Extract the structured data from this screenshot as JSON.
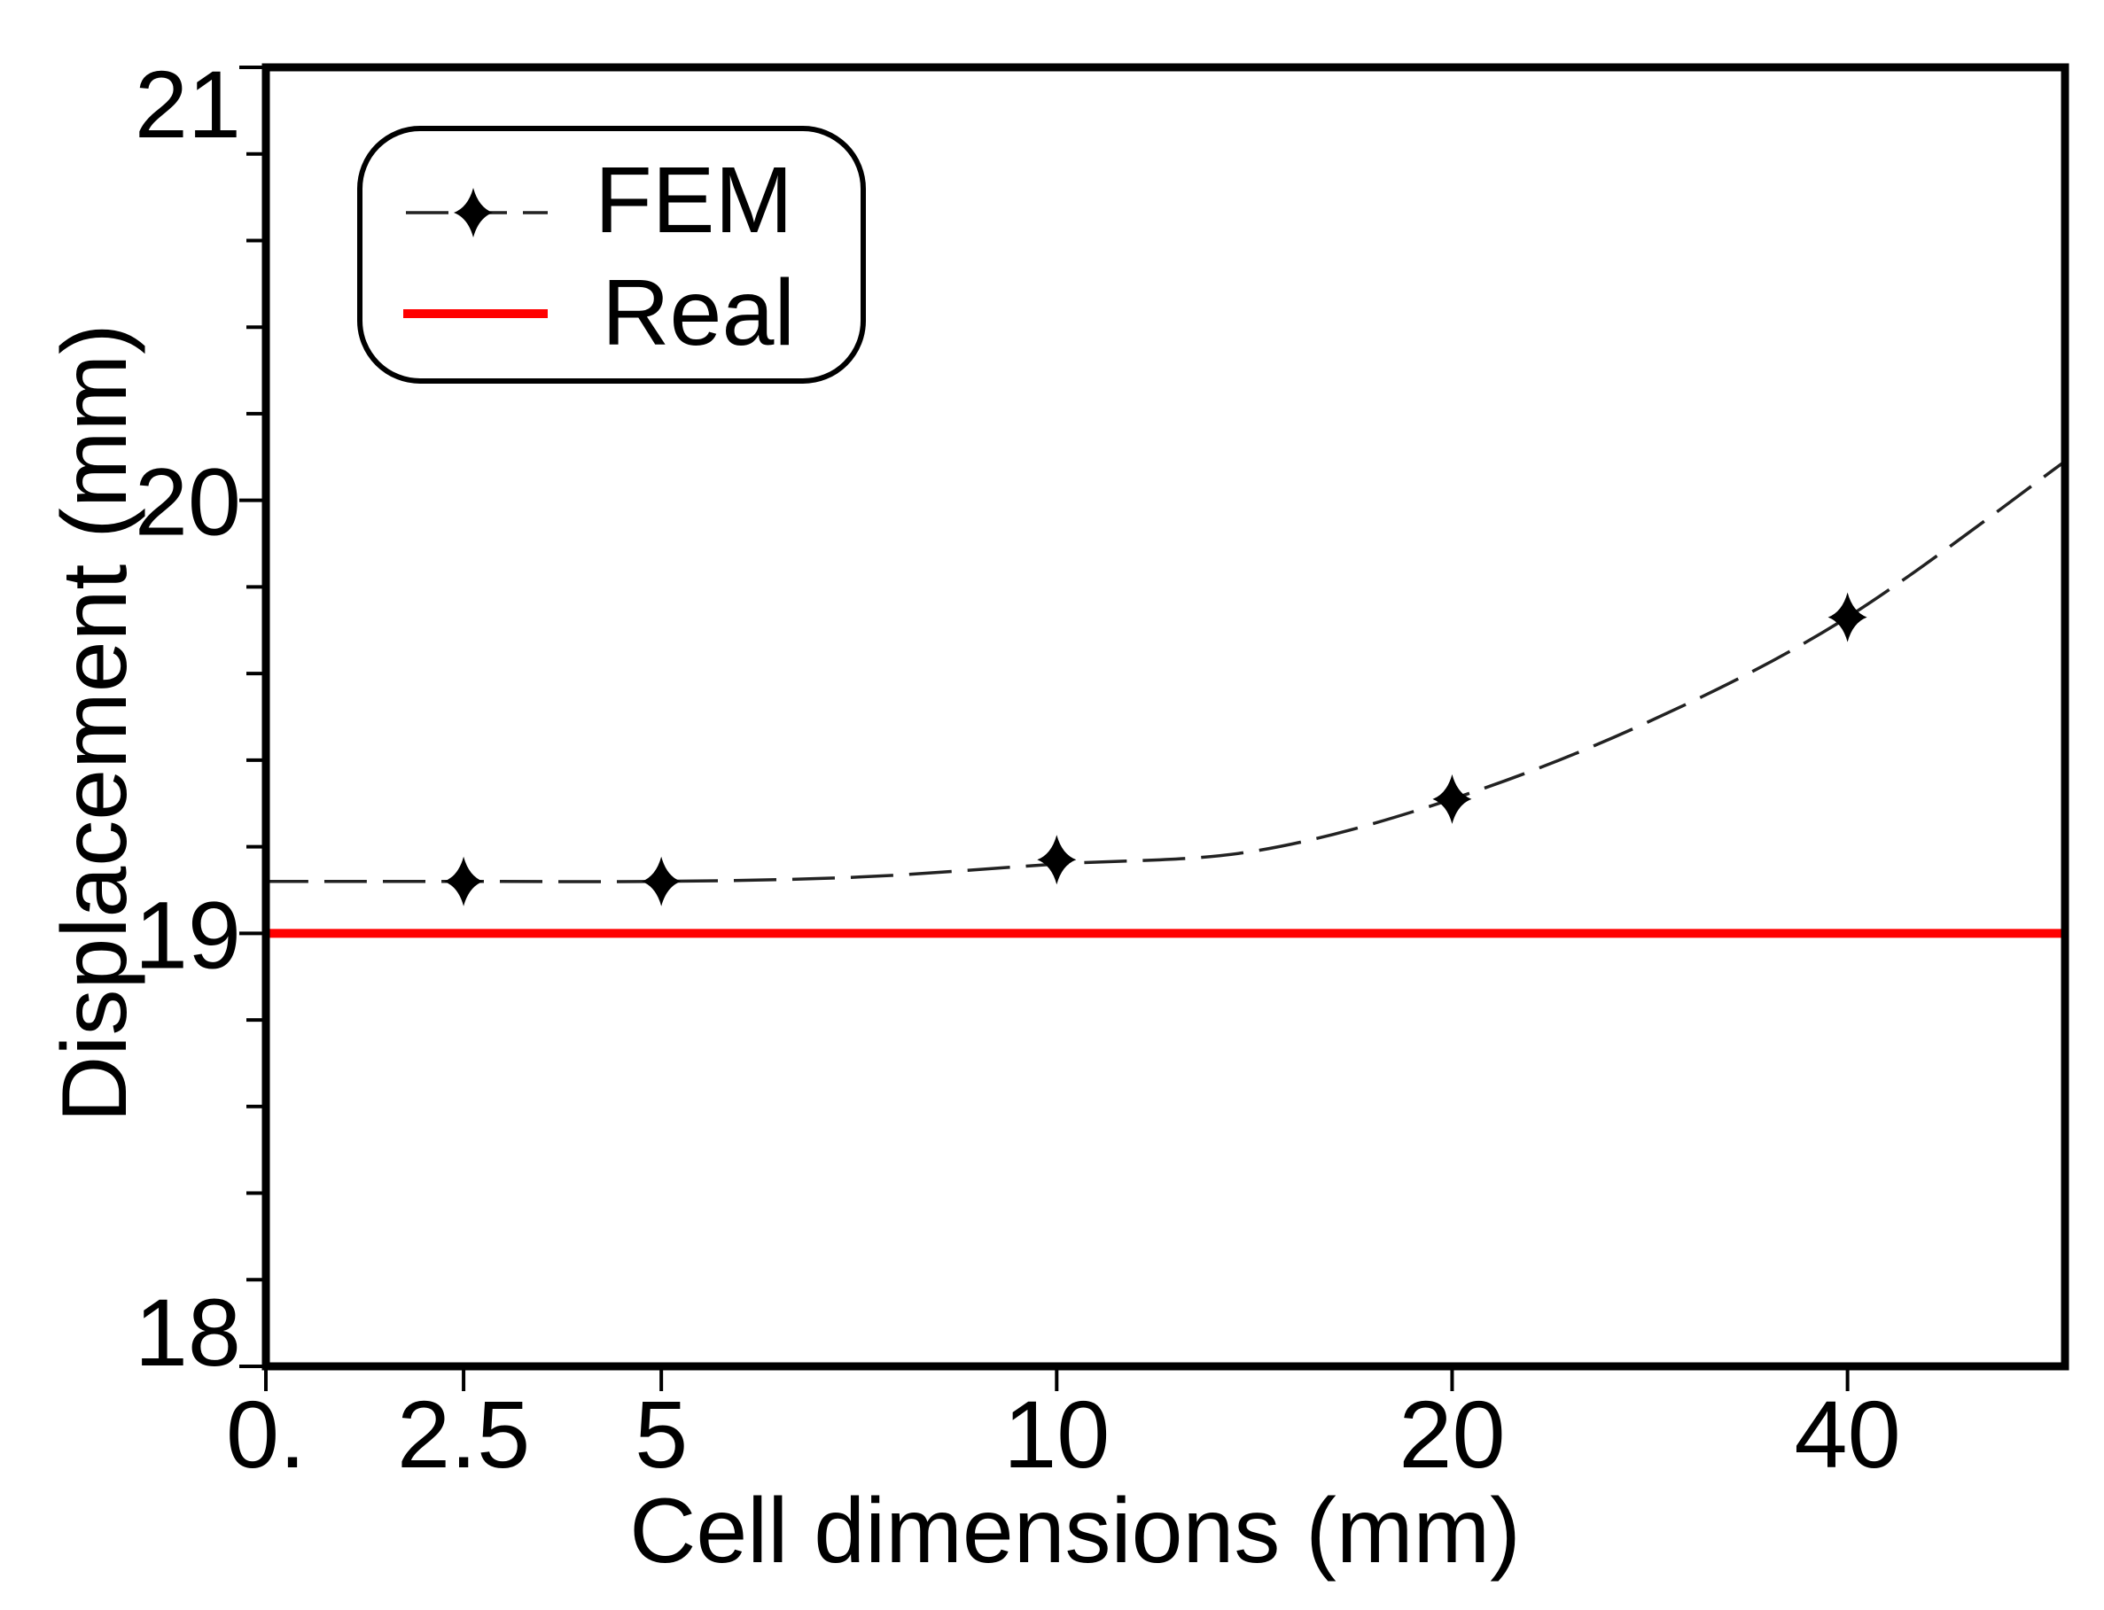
{
  "chart_data": {
    "type": "line",
    "xlabel": "Cell dimensions (mm)",
    "ylabel": "Displacement (mm)",
    "xlim": [
      0,
      51
    ],
    "ylim": [
      18,
      21
    ],
    "xticks": [
      0,
      2.5,
      5,
      10,
      20,
      40
    ],
    "xtick_labels": [
      "0.",
      "2.5",
      "5",
      "10",
      "20",
      "40"
    ],
    "yticks": [
      18,
      19,
      20,
      21
    ],
    "ytick_labels": [
      "18",
      "19",
      "20",
      "21"
    ],
    "y_minor_step": 0.2,
    "grid": false,
    "legend_position": "top-left",
    "series": [
      {
        "name": "FEM",
        "color": "#000000",
        "line_color": "#222222",
        "x": [
          2.5,
          5,
          10,
          20,
          40
        ],
        "y": [
          19.12,
          19.12,
          19.17,
          19.31,
          19.73
        ],
        "curve_x": [
          0,
          2.5,
          5,
          7.5,
          10,
          15,
          20,
          30,
          40,
          51
        ],
        "curve_y": [
          19.12,
          19.12,
          19.12,
          19.13,
          19.16,
          19.19,
          19.31,
          19.49,
          19.73,
          20.09
        ]
      },
      {
        "name": "Real",
        "color": "#ff0000",
        "x": [
          0,
          51
        ],
        "y": [
          19.0,
          19.0
        ]
      }
    ]
  }
}
